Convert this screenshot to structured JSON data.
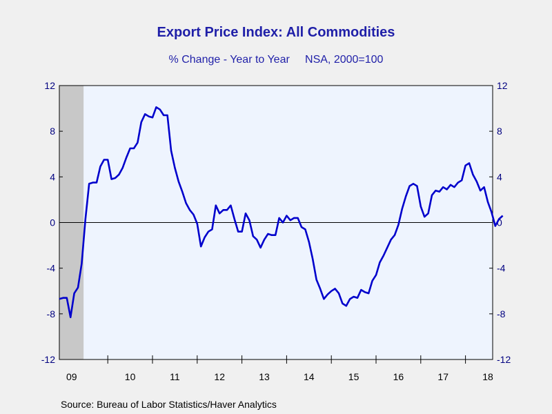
{
  "chart_data": {
    "type": "line",
    "title": "Export Price Index: All Commodities",
    "subtitle": "% Change - Year to Year     NSA, 2000=100",
    "source": "Source:  Bureau of Labor Statistics/Haver Analytics",
    "ylim": [
      -12,
      12
    ],
    "yticks": [
      "12",
      "8",
      "4",
      "0",
      "-4",
      "-8",
      "-12"
    ],
    "xtick_labels": [
      "09",
      "10",
      "11",
      "12",
      "13",
      "14",
      "15",
      "16",
      "17",
      "18"
    ],
    "recession_shading": [
      "2008-12",
      "2009-06"
    ],
    "grid": false,
    "series": [
      {
        "color": "#0000cc",
        "start": "2008-12",
        "frequency": "monthly",
        "values": [
          -6.7,
          -6.6,
          -6.6,
          -8.3,
          -6.2,
          -5.7,
          -3.6,
          0.3,
          3.4,
          3.5,
          3.5,
          4.9,
          5.5,
          5.5,
          3.8,
          3.9,
          4.2,
          4.8,
          5.7,
          6.5,
          6.5,
          7.0,
          8.8,
          9.5,
          9.3,
          9.2,
          10.1,
          9.9,
          9.4,
          9.4,
          6.3,
          4.8,
          3.6,
          2.7,
          1.7,
          1.1,
          0.7,
          -0.1,
          -2.1,
          -1.3,
          -0.8,
          -0.6,
          1.5,
          0.8,
          1.1,
          1.1,
          1.5,
          0.3,
          -0.8,
          -0.8,
          0.8,
          0.2,
          -1.2,
          -1.5,
          -2.2,
          -1.5,
          -1.0,
          -1.1,
          -1.1,
          0.4,
          0.0,
          0.6,
          0.2,
          0.4,
          0.4,
          -0.4,
          -0.6,
          -1.7,
          -3.2,
          -5.0,
          -5.8,
          -6.7,
          -6.3,
          -6.0,
          -5.8,
          -6.2,
          -7.1,
          -7.3,
          -6.7,
          -6.5,
          -6.6,
          -5.9,
          -6.1,
          -6.2,
          -5.1,
          -4.6,
          -3.5,
          -2.9,
          -2.2,
          -1.5,
          -1.1,
          -0.2,
          1.2,
          2.3,
          3.2,
          3.4,
          3.2,
          1.4,
          0.5,
          0.8,
          2.4,
          2.8,
          2.7,
          3.1,
          2.9,
          3.3,
          3.1,
          3.5,
          3.7,
          5.0,
          5.2,
          4.2,
          3.6,
          2.8,
          3.1,
          1.8,
          0.9,
          -0.3,
          0.3,
          0.6
        ]
      }
    ]
  }
}
